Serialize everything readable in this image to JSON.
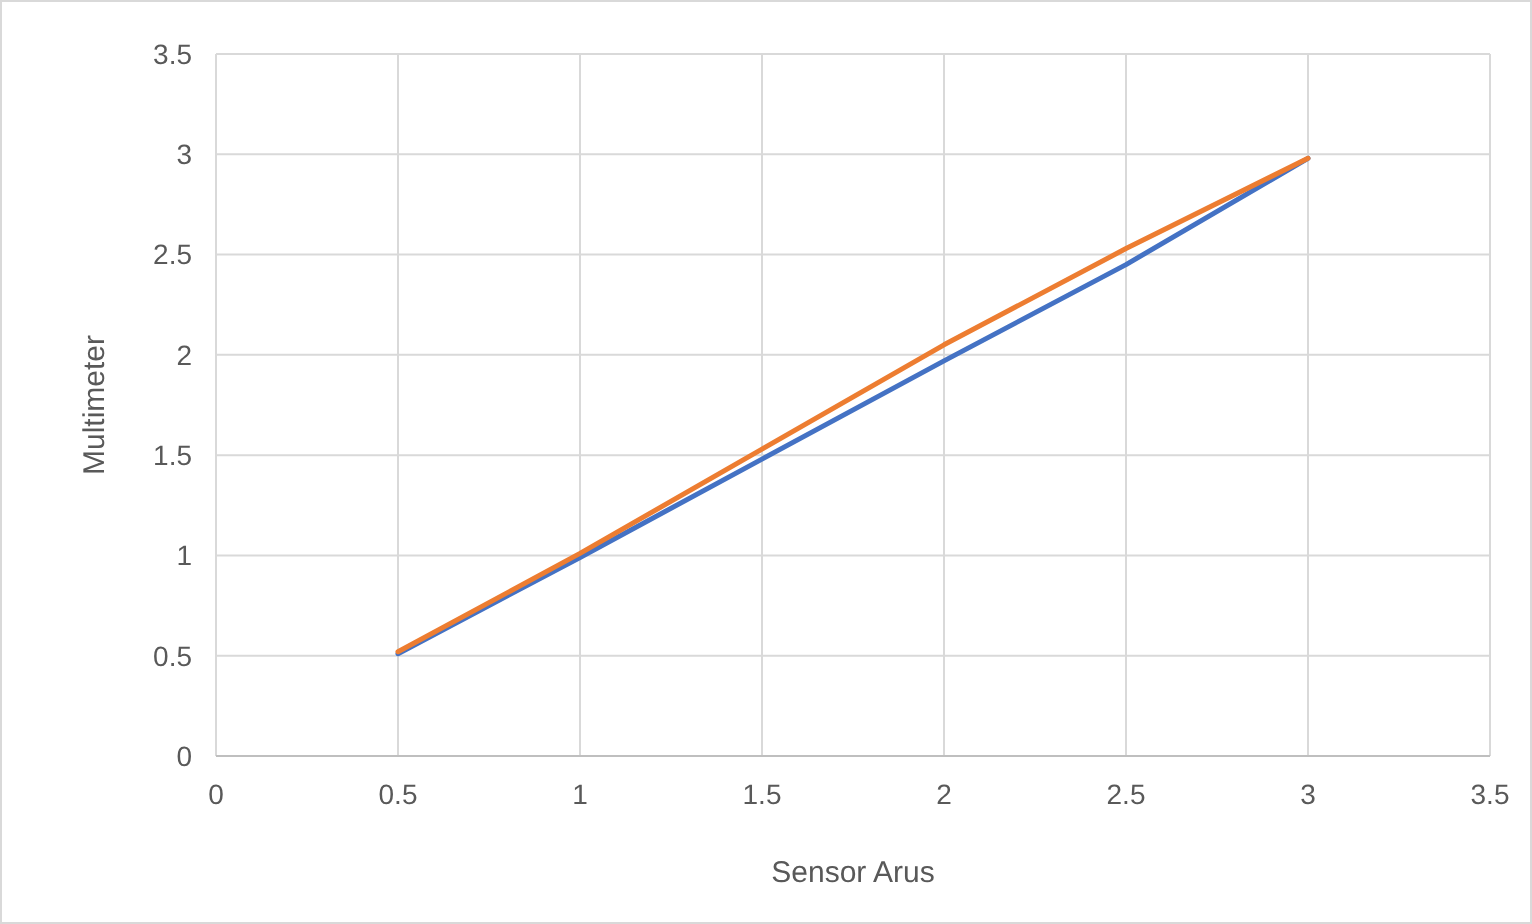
{
  "chart_data": {
    "type": "line",
    "xlabel": "Sensor Arus",
    "ylabel": "Multimeter",
    "xlim": [
      0,
      3.5
    ],
    "xticks": [
      0,
      0.5,
      1,
      1.5,
      2,
      2.5,
      3,
      3.5
    ],
    "ylim": [
      0,
      3.5
    ],
    "yticks": [
      0,
      0.5,
      1,
      1.5,
      2,
      2.5,
      3,
      3.5
    ],
    "grid": true,
    "marker": "none",
    "line_style": "solid",
    "x": [
      0.5,
      1,
      1.5,
      2,
      2.5,
      3
    ],
    "series": [
      {
        "color": "#4472c4",
        "values": [
          0.51,
          0.99,
          1.48,
          1.97,
          2.45,
          2.98
        ]
      },
      {
        "color": "#ed7d31",
        "values": [
          0.52,
          1.01,
          1.53,
          2.05,
          2.53,
          2.98
        ]
      }
    ]
  }
}
